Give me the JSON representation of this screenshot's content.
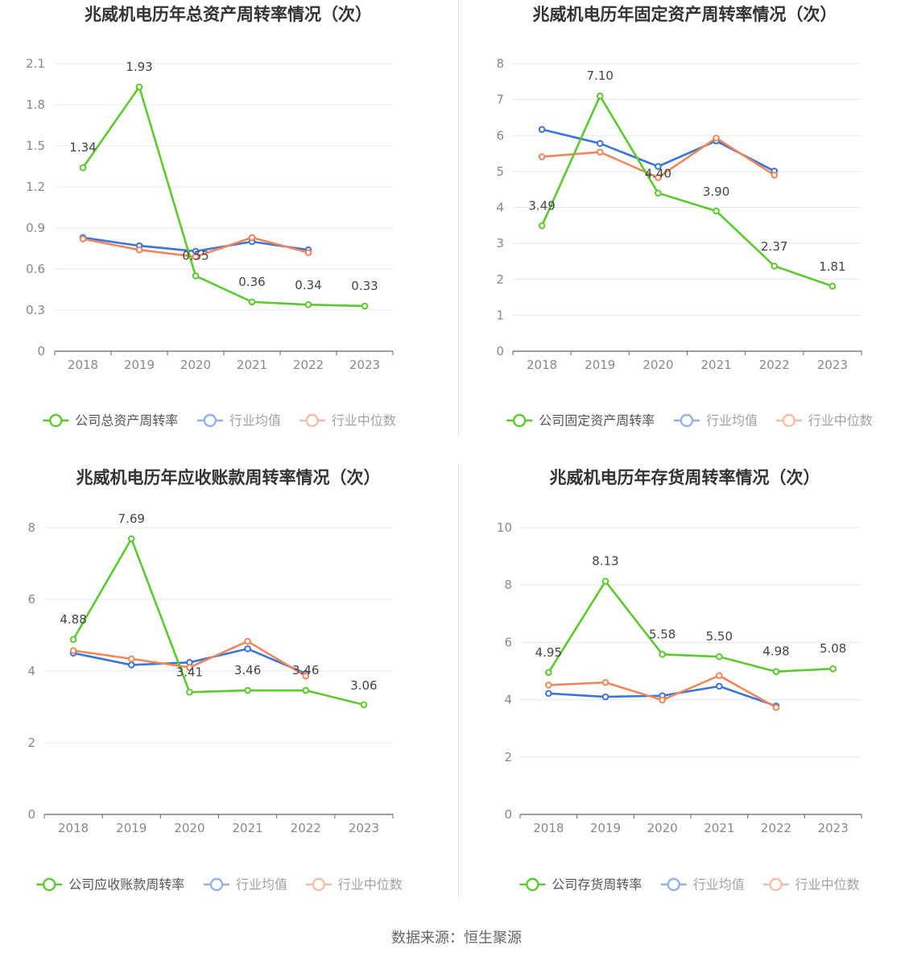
{
  "colors": {
    "company": "#5cc92e",
    "avg": "#3d74d9",
    "median": "#f0875a",
    "grid": "#e4e8f0",
    "axis": "#666666",
    "tick_text": "#888888",
    "title": "#333333",
    "label": "#444444"
  },
  "source_text": "数据来源：恒生聚源",
  "chart_data": [
    {
      "type": "line",
      "title": "兆威机电历年总资产周转率情况（次）",
      "categories": [
        "2018",
        "2019",
        "2020",
        "2021",
        "2022",
        "2023"
      ],
      "ylim": [
        0,
        2.1
      ],
      "yticks": [
        "0",
        "0.3",
        "0.6",
        "0.9",
        "1.2",
        "1.5",
        "1.8",
        "2.1"
      ],
      "legend_position": "bottom",
      "series": [
        {
          "name": "公司总资产周转率",
          "key": "company",
          "values": [
            1.34,
            1.93,
            0.55,
            0.36,
            0.34,
            0.33
          ],
          "labels": [
            "1.34",
            "1.93",
            "0.55",
            "0.36",
            "0.34",
            "0.33"
          ]
        },
        {
          "name": "行业均值",
          "key": "avg",
          "values": [
            0.83,
            0.77,
            0.73,
            0.8,
            0.74,
            null
          ]
        },
        {
          "name": "行业中位数",
          "key": "median",
          "values": [
            0.82,
            0.74,
            0.69,
            0.83,
            0.72,
            null
          ]
        }
      ]
    },
    {
      "type": "line",
      "title": "兆威机电历年固定资产周转率情况（次）",
      "categories": [
        "2018",
        "2019",
        "2020",
        "2021",
        "2022",
        "2023"
      ],
      "ylim": [
        0,
        8
      ],
      "yticks": [
        "0",
        "1",
        "2",
        "3",
        "4",
        "5",
        "6",
        "7",
        "8"
      ],
      "legend_position": "bottom",
      "series": [
        {
          "name": "公司固定资产周转率",
          "key": "company",
          "values": [
            3.49,
            7.1,
            4.4,
            3.9,
            2.37,
            1.81
          ],
          "labels": [
            "3.49",
            "7.10",
            "4.40",
            "3.90",
            "2.37",
            "1.81"
          ]
        },
        {
          "name": "行业均值",
          "key": "avg",
          "values": [
            6.17,
            5.78,
            5.14,
            5.85,
            5.01,
            null
          ]
        },
        {
          "name": "行业中位数",
          "key": "median",
          "values": [
            5.41,
            5.54,
            4.83,
            5.93,
            4.9,
            null
          ]
        }
      ]
    },
    {
      "type": "line",
      "title": "兆威机电历年应收账款周转率情况（次）",
      "categories": [
        "2018",
        "2019",
        "2020",
        "2021",
        "2022",
        "2023"
      ],
      "ylim": [
        0,
        8
      ],
      "yticks": [
        "0",
        "2",
        "4",
        "6",
        "8"
      ],
      "legend_position": "bottom",
      "series": [
        {
          "name": "公司应收账款周转率",
          "key": "company",
          "values": [
            4.88,
            7.69,
            3.41,
            3.46,
            3.46,
            3.06
          ],
          "labels": [
            "4.88",
            "7.69",
            "3.41",
            "3.46",
            "3.46",
            "3.06"
          ]
        },
        {
          "name": "行业均值",
          "key": "avg",
          "values": [
            4.5,
            4.17,
            4.24,
            4.62,
            3.93,
            null
          ]
        },
        {
          "name": "行业中位数",
          "key": "median",
          "values": [
            4.57,
            4.34,
            4.1,
            4.83,
            3.86,
            null
          ]
        }
      ]
    },
    {
      "type": "line",
      "title": "兆威机电历年存货周转率情况（次）",
      "categories": [
        "2018",
        "2019",
        "2020",
        "2021",
        "2022",
        "2023"
      ],
      "ylim": [
        0,
        10
      ],
      "yticks": [
        "0",
        "2",
        "4",
        "6",
        "8",
        "10"
      ],
      "legend_position": "bottom",
      "series": [
        {
          "name": "公司存货周转率",
          "key": "company",
          "values": [
            4.95,
            8.13,
            5.58,
            5.5,
            4.98,
            5.08
          ],
          "labels": [
            "4.95",
            "8.13",
            "5.58",
            "5.50",
            "4.98",
            "5.08"
          ]
        },
        {
          "name": "行业均值",
          "key": "avg",
          "values": [
            4.22,
            4.1,
            4.14,
            4.47,
            3.78,
            null
          ]
        },
        {
          "name": "行业中位数",
          "key": "median",
          "values": [
            4.51,
            4.6,
            3.99,
            4.84,
            3.73,
            null
          ]
        }
      ]
    }
  ]
}
